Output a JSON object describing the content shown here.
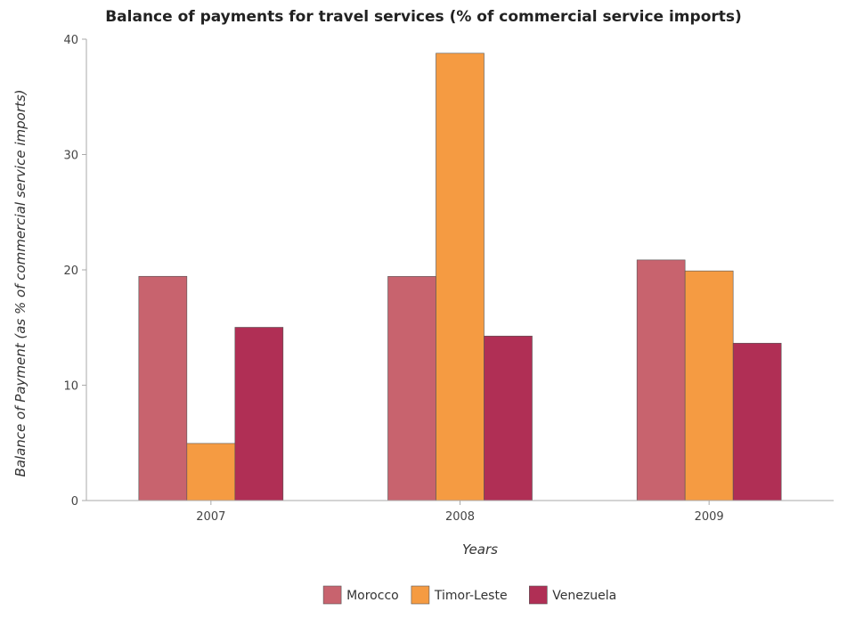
{
  "chart_data": {
    "type": "bar",
    "title": "Balance of payments for travel services (% of commercial service imports)",
    "xlabel": "Years",
    "ylabel": "Balance of Payment (as % of commercial service imports)",
    "categories": [
      "2007",
      "2008",
      "2009"
    ],
    "ylim": [
      0,
      40
    ],
    "yticks": [
      0,
      10,
      20,
      30,
      40
    ],
    "grid": false,
    "legend_position": "bottom",
    "series": [
      {
        "name": "Morocco",
        "color": "#c8636e",
        "values": [
          19.44,
          19.43,
          20.86
        ]
      },
      {
        "name": "Timor-Leste",
        "color": "#f59b42",
        "values": [
          4.95,
          38.78,
          19.91
        ]
      },
      {
        "name": "Venezuela",
        "color": "#b02f55",
        "values": [
          15.02,
          14.26,
          13.64
        ]
      }
    ]
  }
}
